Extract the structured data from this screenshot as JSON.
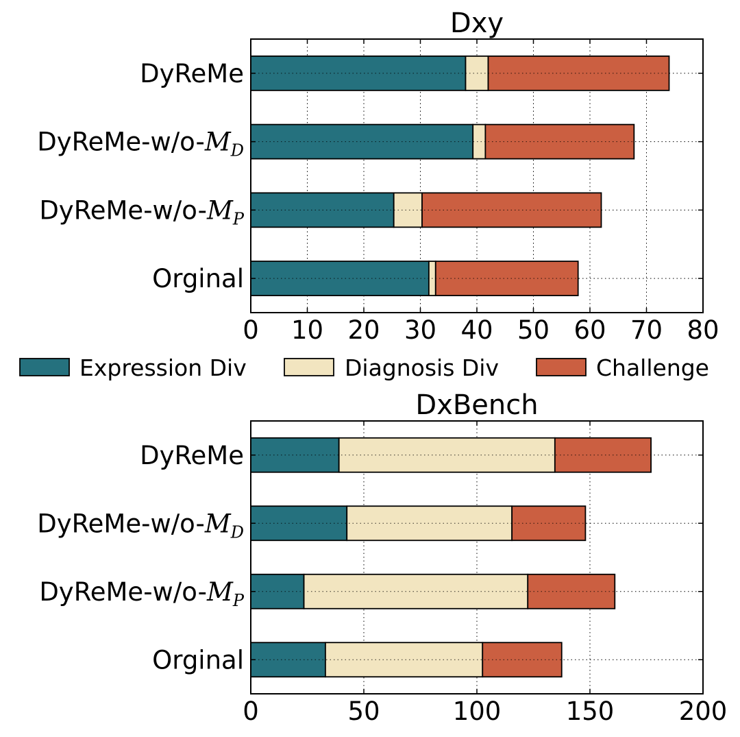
{
  "colors": {
    "expression": "#25717E",
    "diagnosis": "#F2E5C0",
    "challenge": "#CB5F41",
    "grid": "#000000"
  },
  "legend": {
    "position": "between-panels",
    "items": [
      "Expression Div",
      "Diagnosis Div",
      "Challenge"
    ]
  },
  "chart_data": [
    {
      "type": "bar",
      "orientation": "horizontal",
      "stacked": true,
      "title": "Dxy",
      "categories": [
        {
          "base": "DyReMe",
          "math": "",
          "sub": ""
        },
        {
          "base": "DyReMe-w/o-",
          "math": "M",
          "sub": "D"
        },
        {
          "base": "DyReMe-w/o-",
          "math": "M",
          "sub": "P"
        },
        {
          "base": "Orginal",
          "math": "",
          "sub": ""
        }
      ],
      "series": [
        {
          "name": "Expression Div",
          "values": [
            38,
            39.3,
            25.3,
            31.5
          ]
        },
        {
          "name": "Diagnosis Div",
          "values": [
            4,
            2.2,
            5,
            1.2
          ]
        },
        {
          "name": "Challenge",
          "values": [
            32,
            26.3,
            31.7,
            25.2
          ]
        }
      ],
      "xlim": [
        0,
        80
      ],
      "xticks": [
        "0",
        "10",
        "20",
        "30",
        "40",
        "50",
        "60",
        "70",
        "80"
      ],
      "grid": true
    },
    {
      "type": "bar",
      "orientation": "horizontal",
      "stacked": true,
      "title": "DxBench",
      "categories": [
        {
          "base": "DyReMe",
          "math": "",
          "sub": ""
        },
        {
          "base": "DyReMe-w/o-",
          "math": "M",
          "sub": "D"
        },
        {
          "base": "DyReMe-w/o-",
          "math": "M",
          "sub": "P"
        },
        {
          "base": "Orginal",
          "math": "",
          "sub": ""
        }
      ],
      "series": [
        {
          "name": "Expression Div",
          "values": [
            39,
            42.5,
            23.5,
            33
          ]
        },
        {
          "name": "Diagnosis Div",
          "values": [
            95.5,
            73,
            99,
            69.5
          ]
        },
        {
          "name": "Challenge",
          "values": [
            42.5,
            32.5,
            38.5,
            35
          ]
        }
      ],
      "xlim": [
        0,
        200
      ],
      "xticks": [
        "0",
        "50",
        "100",
        "150",
        "200"
      ],
      "grid": true
    }
  ]
}
